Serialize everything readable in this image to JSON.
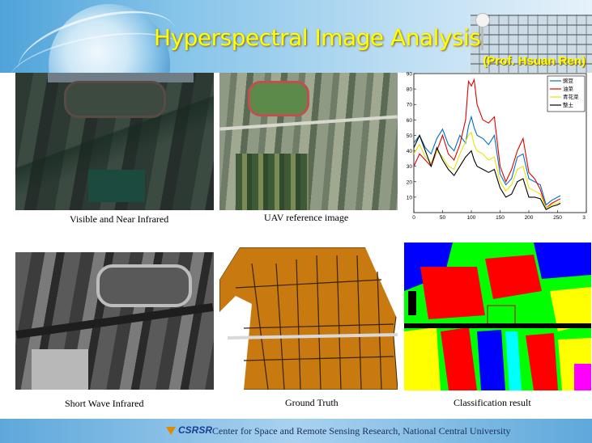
{
  "slide": {
    "title": "Hyperspectral Image Analysis",
    "subtitle": "(Prof. Hsuan Ren)"
  },
  "panels": {
    "vnir_caption": "Visible and Near Infrared",
    "uav_caption": "UAV reference image",
    "swir_caption": "Short Wave Infrared",
    "ground_truth_caption": "Ground Truth",
    "classification_caption": "Classification result"
  },
  "footer": {
    "logo_text": "CSRSR",
    "text": "Center for Space and Remote Sensing Research, National Central University"
  },
  "chart_data": {
    "type": "line",
    "xlim": [
      0,
      300
    ],
    "ylim": [
      0,
      90
    ],
    "x_ticks": [
      "0",
      "50",
      "100",
      "150",
      "200",
      "250",
      "3"
    ],
    "y_ticks": [
      "10",
      "20",
      "30",
      "40",
      "50",
      "60",
      "70",
      "80",
      "90"
    ],
    "legend_position": "top-right",
    "series": [
      {
        "name": "豌豆",
        "color": "#0070c0",
        "x": [
          0,
          10,
          20,
          30,
          40,
          50,
          60,
          70,
          80,
          90,
          95,
          100,
          105,
          110,
          120,
          130,
          140,
          150,
          160,
          170,
          180,
          190,
          200,
          210,
          220,
          230,
          240,
          250,
          255
        ],
        "y": [
          45,
          50,
          42,
          38,
          48,
          54,
          44,
          40,
          50,
          45,
          56,
          62,
          55,
          50,
          48,
          44,
          50,
          25,
          18,
          22,
          36,
          38,
          22,
          20,
          18,
          5,
          8,
          10,
          11
        ]
      },
      {
        "name": "油菜",
        "color": "#e00000",
        "x": [
          0,
          10,
          20,
          30,
          40,
          50,
          60,
          70,
          80,
          90,
          95,
          100,
          105,
          110,
          120,
          130,
          140,
          150,
          160,
          170,
          180,
          190,
          200,
          210,
          220,
          230,
          240,
          250,
          255
        ],
        "y": [
          30,
          38,
          34,
          30,
          40,
          50,
          38,
          34,
          44,
          60,
          85,
          82,
          86,
          70,
          60,
          58,
          62,
          30,
          20,
          28,
          40,
          48,
          26,
          22,
          15,
          3,
          6,
          8,
          9
        ]
      },
      {
        "name": "青花菜",
        "color": "#e6e600",
        "x": [
          0,
          10,
          20,
          30,
          40,
          50,
          60,
          70,
          80,
          90,
          95,
          100,
          105,
          110,
          120,
          130,
          140,
          150,
          160,
          170,
          180,
          190,
          200,
          210,
          220,
          230,
          240,
          250,
          255
        ],
        "y": [
          38,
          44,
          36,
          32,
          40,
          36,
          30,
          28,
          38,
          46,
          50,
          52,
          44,
          40,
          38,
          34,
          36,
          20,
          14,
          18,
          28,
          30,
          16,
          14,
          12,
          3,
          5,
          6,
          7
        ]
      },
      {
        "name": "整土",
        "color": "#000000",
        "x": [
          0,
          10,
          20,
          30,
          40,
          50,
          60,
          70,
          80,
          90,
          95,
          100,
          105,
          110,
          120,
          130,
          140,
          150,
          160,
          170,
          180,
          190,
          200,
          210,
          220,
          230,
          240,
          250,
          255
        ],
        "y": [
          42,
          50,
          40,
          30,
          42,
          34,
          28,
          24,
          30,
          36,
          38,
          40,
          34,
          30,
          28,
          26,
          28,
          16,
          10,
          12,
          20,
          22,
          10,
          10,
          9,
          2,
          4,
          5,
          6
        ]
      }
    ]
  },
  "colors": {
    "title": "#ffff00",
    "classes": [
      "#ff0000",
      "#00ff00",
      "#0000ff",
      "#ffff00",
      "#00ffff",
      "#ff00ff",
      "#000000"
    ]
  }
}
